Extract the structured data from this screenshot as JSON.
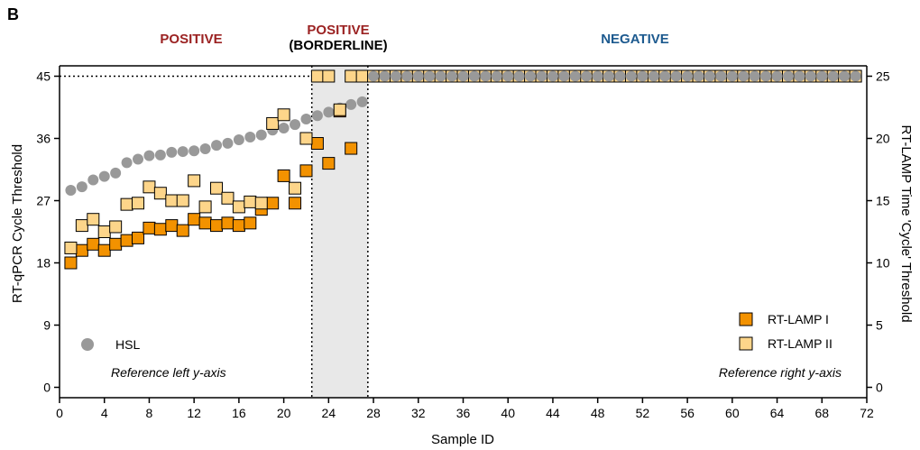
{
  "panel_label": "B",
  "regions": {
    "positive": "POSITIVE",
    "borderline_line1": "POSITIVE",
    "borderline_line2": "(BORDERLINE)",
    "negative": "NEGATIVE"
  },
  "notes": {
    "left": "Reference left y-axis",
    "right": "Reference right y-axis"
  },
  "colors": {
    "hsl": "#999999",
    "lamp1": "#f39200",
    "lamp2": "#fdd58a",
    "shade": "#e8e8e8"
  },
  "chart_data": {
    "type": "scatter",
    "xlabel": "Sample ID",
    "ylabel": "RT-qPCR Cycle Threshold",
    "y2label": "RT-LAMP Time 'Cycle' Threshold",
    "xlim": [
      0,
      72
    ],
    "ylim": [
      -1.5,
      46.5
    ],
    "y2lim": [
      -0.833,
      25.833
    ],
    "xticks": [
      0,
      4,
      8,
      12,
      16,
      20,
      24,
      28,
      32,
      36,
      40,
      44,
      48,
      52,
      56,
      60,
      64,
      68,
      72
    ],
    "yticks": [
      0,
      9,
      18,
      27,
      36,
      45
    ],
    "y2ticks": [
      0,
      5,
      10,
      15,
      20,
      25
    ],
    "borderline_range": [
      22.5,
      27.5
    ],
    "reference_line_y": 45,
    "series": [
      {
        "name": "HSL",
        "axis": "left",
        "marker": "circle",
        "x": [
          1,
          2,
          3,
          4,
          5,
          6,
          7,
          8,
          9,
          10,
          11,
          12,
          13,
          14,
          15,
          16,
          17,
          18,
          19,
          20,
          21,
          22,
          23,
          24,
          25,
          26,
          27,
          28,
          29,
          30,
          31,
          32,
          33,
          34,
          35,
          36,
          37,
          38,
          39,
          40,
          41,
          42,
          43,
          44,
          45,
          46,
          47,
          48,
          49,
          50,
          51,
          52,
          53,
          54,
          55,
          56,
          57,
          58,
          59,
          60,
          61,
          62,
          63,
          64,
          65,
          66,
          67,
          68,
          69,
          70,
          71
        ],
        "y": [
          28.5,
          29.0,
          30.0,
          30.5,
          31.0,
          32.5,
          33.0,
          33.5,
          33.6,
          34.0,
          34.1,
          34.2,
          34.5,
          35.0,
          35.3,
          35.8,
          36.2,
          36.5,
          37.2,
          37.5,
          38.0,
          38.8,
          39.3,
          39.8,
          40.4,
          40.9,
          41.3,
          45,
          45,
          45,
          45,
          45,
          45,
          45,
          45,
          45,
          45,
          45,
          45,
          45,
          45,
          45,
          45,
          45,
          45,
          45,
          45,
          45,
          45,
          45,
          45,
          45,
          45,
          45,
          45,
          45,
          45,
          45,
          45,
          45,
          45,
          45,
          45,
          45,
          45,
          45,
          45,
          45,
          45,
          45,
          45
        ]
      },
      {
        "name": "RT-LAMP I",
        "axis": "right",
        "marker": "square",
        "x": [
          1,
          2,
          3,
          4,
          5,
          6,
          7,
          8,
          9,
          10,
          11,
          12,
          13,
          14,
          15,
          16,
          17,
          18,
          19,
          20,
          21,
          22,
          23,
          24,
          25,
          26,
          27,
          28,
          29,
          30,
          31,
          32,
          33,
          34,
          35,
          36,
          37,
          38,
          39,
          40,
          41,
          42,
          43,
          44,
          45,
          46,
          47,
          48,
          49,
          50,
          51,
          52,
          53,
          54,
          55,
          56,
          57,
          58,
          59,
          60,
          61,
          62,
          63,
          64,
          65,
          66,
          67,
          68,
          69,
          70,
          71
        ],
        "y": [
          10.0,
          11.0,
          11.5,
          11.0,
          11.5,
          11.8,
          12.0,
          12.8,
          12.7,
          13.0,
          12.6,
          13.5,
          13.2,
          13.0,
          13.2,
          13.0,
          13.2,
          14.3,
          14.8,
          17.0,
          14.8,
          17.4,
          19.6,
          18.0,
          22.2,
          19.2,
          25,
          25,
          25,
          25,
          25,
          25,
          25,
          25,
          25,
          25,
          25,
          25,
          25,
          25,
          25,
          25,
          25,
          25,
          25,
          25,
          25,
          25,
          25,
          25,
          25,
          25,
          25,
          25,
          25,
          25,
          25,
          25,
          25,
          25,
          25,
          25,
          25,
          25,
          25,
          25,
          25,
          25,
          25,
          25,
          25
        ]
      },
      {
        "name": "RT-LAMP II",
        "axis": "right",
        "marker": "square",
        "x": [
          1,
          2,
          3,
          4,
          5,
          6,
          7,
          8,
          9,
          10,
          11,
          12,
          13,
          14,
          15,
          16,
          17,
          18,
          19,
          20,
          21,
          22,
          23,
          24,
          25,
          26,
          27,
          28,
          29,
          30,
          31,
          32,
          33,
          34,
          35,
          36,
          37,
          38,
          39,
          40,
          41,
          42,
          43,
          44,
          45,
          46,
          47,
          48,
          49,
          50,
          51,
          52,
          53,
          54,
          55,
          56,
          57,
          58,
          59,
          60,
          61,
          62,
          63,
          64,
          65,
          66,
          67,
          68,
          69,
          70,
          71
        ],
        "y": [
          11.2,
          13.0,
          13.5,
          12.5,
          12.9,
          14.7,
          14.8,
          16.1,
          15.6,
          15.0,
          15.0,
          16.6,
          14.5,
          16.0,
          15.2,
          14.5,
          14.9,
          14.8,
          21.2,
          21.9,
          16.0,
          20.0,
          25,
          25,
          22.3,
          25,
          25,
          25,
          25,
          25,
          25,
          25,
          25,
          25,
          25,
          25,
          25,
          25,
          25,
          25,
          25,
          25,
          25,
          25,
          25,
          25,
          25,
          25,
          25,
          25,
          25,
          25,
          25,
          25,
          25,
          25,
          25,
          25,
          25,
          25,
          25,
          25,
          25,
          25,
          25,
          25,
          25,
          25,
          25,
          25,
          25
        ]
      }
    ]
  }
}
